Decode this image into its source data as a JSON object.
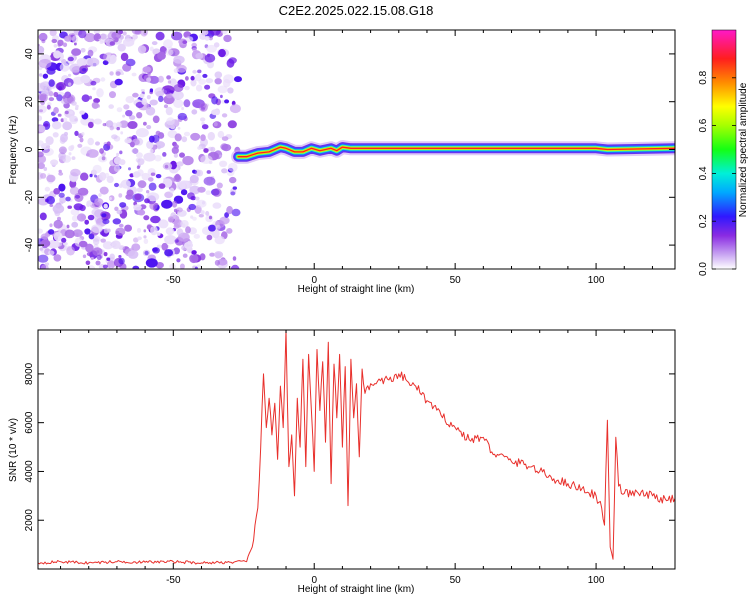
{
  "title": "C2E2.2025.022.15.08.G18",
  "chart_data": [
    {
      "type": "heatmap",
      "xlabel": "Height of straight line (km)",
      "ylabel": "Frequency (Hz)",
      "xlim": [
        -98,
        128
      ],
      "ylim": [
        -50,
        50
      ],
      "x_ticks": [
        -50,
        0,
        50,
        100
      ],
      "y_ticks": [
        -40,
        -20,
        0,
        20,
        40
      ],
      "colorbar": {
        "label": "Normalized spectral amplitude",
        "range": [
          0,
          1
        ],
        "ticks": [
          0,
          0.2,
          0.4,
          0.6,
          0.8
        ]
      },
      "noise_region_x": [
        -98,
        -27
      ],
      "signal_track": [
        {
          "x": -27,
          "y": -3
        },
        {
          "x": -24,
          "y": -3
        },
        {
          "x": -20,
          "y": -1.5
        },
        {
          "x": -16,
          "y": -1
        },
        {
          "x": -12,
          "y": 1
        },
        {
          "x": -10,
          "y": 0.5
        },
        {
          "x": -7,
          "y": -1
        },
        {
          "x": -4,
          "y": -1
        },
        {
          "x": -1,
          "y": 0.5
        },
        {
          "x": 2,
          "y": -0.5
        },
        {
          "x": 4,
          "y": 0
        },
        {
          "x": 6,
          "y": 0.5
        },
        {
          "x": 8,
          "y": -0.5
        },
        {
          "x": 10,
          "y": 1
        },
        {
          "x": 13,
          "y": 0.5
        },
        {
          "x": 20,
          "y": 0.5
        },
        {
          "x": 60,
          "y": 0.5
        },
        {
          "x": 100,
          "y": 0.5
        },
        {
          "x": 104,
          "y": 0
        },
        {
          "x": 128,
          "y": 0.5
        }
      ]
    },
    {
      "type": "line",
      "xlabel": "Height of straight line (km)",
      "ylabel": "SNR (10 * v/v)",
      "xlim": [
        -98,
        128
      ],
      "ylim": [
        0,
        9800
      ],
      "x_ticks": [
        -50,
        0,
        50,
        100
      ],
      "y_ticks": [
        2000,
        4000,
        6000,
        8000
      ],
      "series": [
        {
          "color": "#e8302c",
          "x": [
            -98,
            -90,
            -80,
            -70,
            -60,
            -50,
            -40,
            -30,
            -24,
            -22,
            -21,
            -20,
            -19,
            -18,
            -17,
            -16,
            -15,
            -14,
            -13,
            -12,
            -11,
            -10,
            -9,
            -8,
            -7,
            -6,
            -5,
            -4,
            -3,
            -2,
            -1,
            0,
            1,
            2,
            3,
            4,
            5,
            6,
            7,
            8,
            9,
            10,
            11,
            12,
            13,
            14,
            15,
            16,
            17,
            18,
            20,
            22,
            25,
            28,
            30,
            33,
            36,
            40,
            45,
            50,
            55,
            60,
            63,
            65,
            70,
            75,
            80,
            85,
            90,
            95,
            100,
            102,
            103,
            104,
            105,
            106,
            107,
            108,
            110,
            115,
            120,
            125,
            128
          ],
          "y": [
            250,
            300,
            250,
            300,
            280,
            300,
            250,
            280,
            300,
            900,
            1800,
            2500,
            5000,
            8000,
            5800,
            7000,
            5500,
            6800,
            4500,
            7500,
            5800,
            9800,
            4200,
            5500,
            3000,
            7000,
            5000,
            8600,
            4200,
            8800,
            6500,
            4000,
            9000,
            6500,
            8500,
            5200,
            9300,
            3500,
            8400,
            6200,
            8800,
            5000,
            8300,
            2600,
            8600,
            6200,
            7600,
            4600,
            8200,
            7200,
            7600,
            7600,
            7800,
            7700,
            8000,
            7700,
            7500,
            6900,
            6300,
            5800,
            5300,
            5400,
            4800,
            4700,
            4400,
            4300,
            4000,
            3700,
            3500,
            3300,
            3000,
            2500,
            1800,
            6100,
            900,
            400,
            5400,
            3400,
            3100,
            3100,
            3000,
            2800,
            2900
          ]
        }
      ]
    }
  ]
}
